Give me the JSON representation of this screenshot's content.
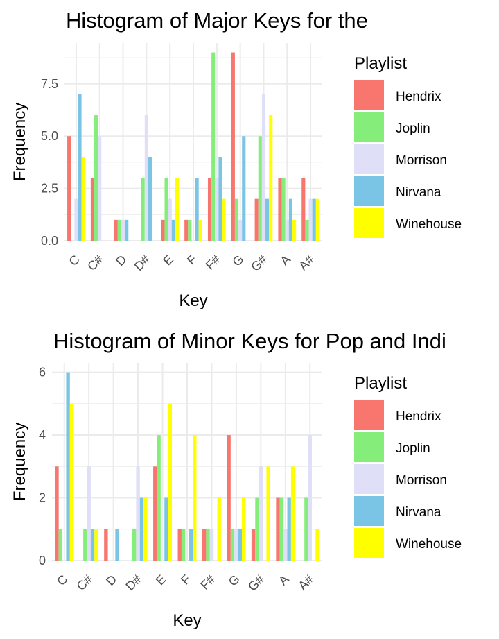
{
  "legend": {
    "title": "Playlist",
    "series": [
      {
        "name": "Hendrix",
        "color": "#F8766D"
      },
      {
        "name": "Joplin",
        "color": "#85EE7A"
      },
      {
        "name": "Morrison",
        "color": "#DFDFF7"
      },
      {
        "name": "Nirvana",
        "color": "#7AC4E6"
      },
      {
        "name": "Winehouse",
        "color": "#FFFF00"
      }
    ]
  },
  "chart_data": [
    {
      "type": "bar",
      "title": "Histogram of Major Keys for the",
      "xlabel": "Key",
      "ylabel": "Frequency",
      "categories": [
        "C",
        "C#",
        "D",
        "D#",
        "E",
        "F",
        "F#",
        "G",
        "G#",
        "A",
        "A#"
      ],
      "ylim": [
        0,
        9.45
      ],
      "yticks": [
        0.0,
        2.5,
        5.0,
        7.5
      ],
      "ytick_labels": [
        "0.0",
        "2.5",
        "5.0",
        "7.5"
      ],
      "series": [
        {
          "name": "Hendrix",
          "values": [
            5,
            3,
            1,
            0,
            1,
            1,
            3,
            9,
            2,
            3,
            3
          ]
        },
        {
          "name": "Joplin",
          "values": [
            0,
            6,
            1,
            3,
            3,
            1,
            9,
            2,
            5,
            3,
            1
          ]
        },
        {
          "name": "Morrison",
          "values": [
            2,
            5,
            1,
            6,
            2,
            0,
            3,
            1,
            7,
            1,
            2
          ]
        },
        {
          "name": "Nirvana",
          "values": [
            7,
            0,
            1,
            4,
            1,
            3,
            4,
            5,
            2,
            2,
            2
          ]
        },
        {
          "name": "Winehouse",
          "values": [
            4,
            0,
            0,
            0,
            3,
            1,
            2,
            0,
            6,
            1,
            2
          ]
        }
      ],
      "legend_position": "right",
      "grid": true
    },
    {
      "type": "bar",
      "title": "Histogram of Minor Keys for Pop and Indi",
      "xlabel": "Key",
      "ylabel": "Frequency",
      "categories": [
        "C",
        "C#",
        "D",
        "D#",
        "E",
        "F",
        "F#",
        "G",
        "G#",
        "A",
        "A#"
      ],
      "ylim": [
        0,
        6.3
      ],
      "yticks": [
        0,
        2,
        4,
        6
      ],
      "ytick_labels": [
        "0",
        "2",
        "4",
        "6"
      ],
      "series": [
        {
          "name": "Hendrix",
          "values": [
            3,
            0,
            1,
            0,
            3,
            1,
            1,
            4,
            1,
            2,
            0
          ]
        },
        {
          "name": "Joplin",
          "values": [
            1,
            1,
            0,
            1,
            4,
            1,
            1,
            1,
            2,
            2,
            2
          ]
        },
        {
          "name": "Morrison",
          "values": [
            0,
            3,
            0,
            3,
            0,
            0,
            1,
            1,
            3,
            1,
            4
          ]
        },
        {
          "name": "Nirvana",
          "values": [
            6,
            1,
            1,
            2,
            2,
            1,
            0,
            1,
            0,
            2,
            0
          ]
        },
        {
          "name": "Winehouse",
          "values": [
            5,
            1,
            0,
            2,
            5,
            4,
            2,
            2,
            3,
            3,
            1
          ]
        }
      ],
      "legend_position": "right",
      "grid": true
    }
  ]
}
